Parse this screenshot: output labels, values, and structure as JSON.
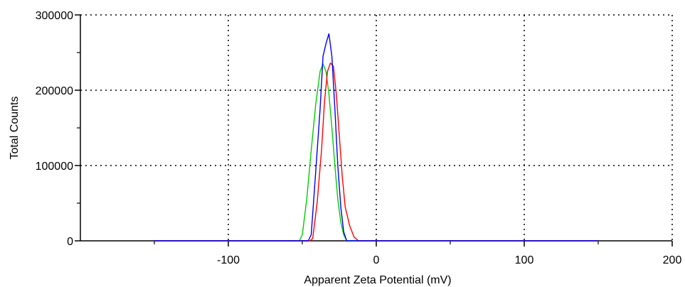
{
  "chart_data": {
    "type": "line",
    "title": "",
    "xlabel": "Apparent Zeta Potential (mV)",
    "ylabel": "Total Counts",
    "xlim": [
      -200,
      200
    ],
    "ylim": [
      0,
      300000
    ],
    "x_ticks": [
      -100,
      0,
      100,
      200
    ],
    "x_tick_labels": [
      "-100",
      "0",
      "100",
      "200"
    ],
    "y_ticks": [
      0,
      100000,
      200000,
      300000
    ],
    "y_tick_labels": [
      "0",
      "100000",
      "200000",
      "300000"
    ],
    "x_minor_ticks": [
      -150,
      -50,
      50,
      150
    ],
    "y_minor_ticks": [
      50000,
      150000,
      250000
    ],
    "grid": "dotted",
    "legend": "none",
    "series": [
      {
        "color": "#00cc00",
        "points": [
          [
            -150,
            0
          ],
          [
            -52,
            0
          ],
          [
            -50,
            8000
          ],
          [
            -47,
            55000
          ],
          [
            -44,
            120000
          ],
          [
            -41,
            180000
          ],
          [
            -38,
            225000
          ],
          [
            -36,
            235000
          ],
          [
            -34,
            225000
          ],
          [
            -32,
            195000
          ],
          [
            -30,
            150000
          ],
          [
            -28,
            100000
          ],
          [
            -26,
            55000
          ],
          [
            -24,
            25000
          ],
          [
            -22,
            8000
          ],
          [
            -20,
            0
          ],
          [
            150,
            0
          ]
        ]
      },
      {
        "color": "#ff0000",
        "points": [
          [
            -150,
            0
          ],
          [
            -45,
            0
          ],
          [
            -43,
            3000
          ],
          [
            -40,
            50000
          ],
          [
            -37,
            120000
          ],
          [
            -35,
            185000
          ],
          [
            -33,
            225000
          ],
          [
            -31,
            236000
          ],
          [
            -29,
            232000
          ],
          [
            -27,
            195000
          ],
          [
            -25,
            140000
          ],
          [
            -23,
            85000
          ],
          [
            -21,
            45000
          ],
          [
            -18,
            20000
          ],
          [
            -15,
            5000
          ],
          [
            -12,
            0
          ],
          [
            150,
            0
          ]
        ]
      },
      {
        "color": "#0000ff",
        "points": [
          [
            -150,
            0
          ],
          [
            -46,
            0
          ],
          [
            -44,
            8000
          ],
          [
            -41,
            90000
          ],
          [
            -38,
            175000
          ],
          [
            -36,
            245000
          ],
          [
            -34,
            262000
          ],
          [
            -32,
            275000
          ],
          [
            -30,
            245000
          ],
          [
            -28,
            175000
          ],
          [
            -26,
            100000
          ],
          [
            -24,
            45000
          ],
          [
            -22,
            12000
          ],
          [
            -20,
            0
          ],
          [
            150,
            0
          ]
        ]
      }
    ]
  }
}
